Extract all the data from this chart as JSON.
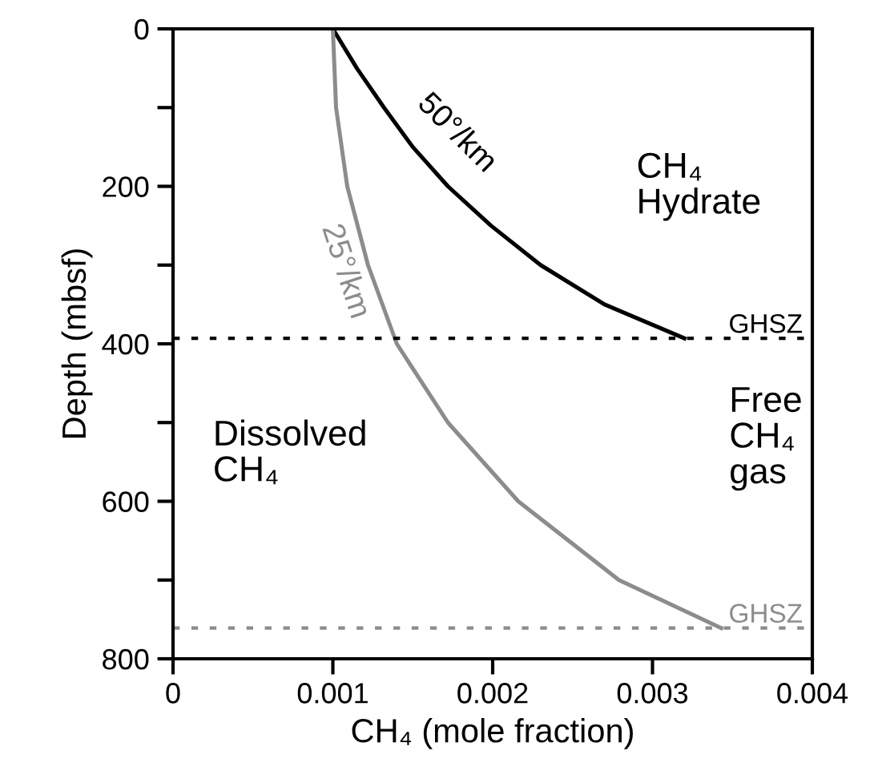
{
  "chart_data": {
    "type": "line",
    "xlabel": "CH₄ (mole fraction)",
    "ylabel": "Depth (mbsf)",
    "xlim": [
      0,
      0.004
    ],
    "ylim": [
      800,
      0
    ],
    "xticks": [
      0,
      0.001,
      0.002,
      0.003,
      0.004
    ],
    "yticks": [
      0,
      {
        "value": 100,
        "label": null
      },
      200,
      {
        "value": 300,
        "label": null
      },
      400,
      {
        "value": 500,
        "label": null
      },
      600,
      {
        "value": 700,
        "label": null
      },
      800
    ],
    "series": [
      {
        "name": "50°/km",
        "color": "#000000",
        "x": [
          0.001,
          0.00115,
          0.00132,
          0.0015,
          0.00172,
          0.00199,
          0.0023,
          0.0027,
          0.0032
        ],
        "values": [
          0,
          50,
          100,
          150,
          200,
          250,
          300,
          350,
          393
        ]
      },
      {
        "name": "25°/km",
        "color": "#8c8c8c",
        "x": [
          0.001,
          0.00102,
          0.00109,
          0.00122,
          0.0014,
          0.00172,
          0.00216,
          0.00279,
          0.00343
        ],
        "values": [
          0,
          100,
          200,
          300,
          400,
          500,
          600,
          700,
          761
        ]
      }
    ],
    "ref_lines": [
      {
        "axis": "y",
        "value": 393,
        "label": "GHSZ",
        "color": "#000000",
        "line_style": "dotted"
      },
      {
        "axis": "y",
        "value": 761,
        "label": "GHSZ",
        "color": "#8c8c8c",
        "line_style": "dotted"
      }
    ],
    "annotations": [
      "CH₄\nHydrate",
      "Free\nCH₄\ngas",
      "Dissolved\nCH₄"
    ],
    "grid": false,
    "legend": false,
    "marker": "none",
    "line_style": "solid"
  }
}
